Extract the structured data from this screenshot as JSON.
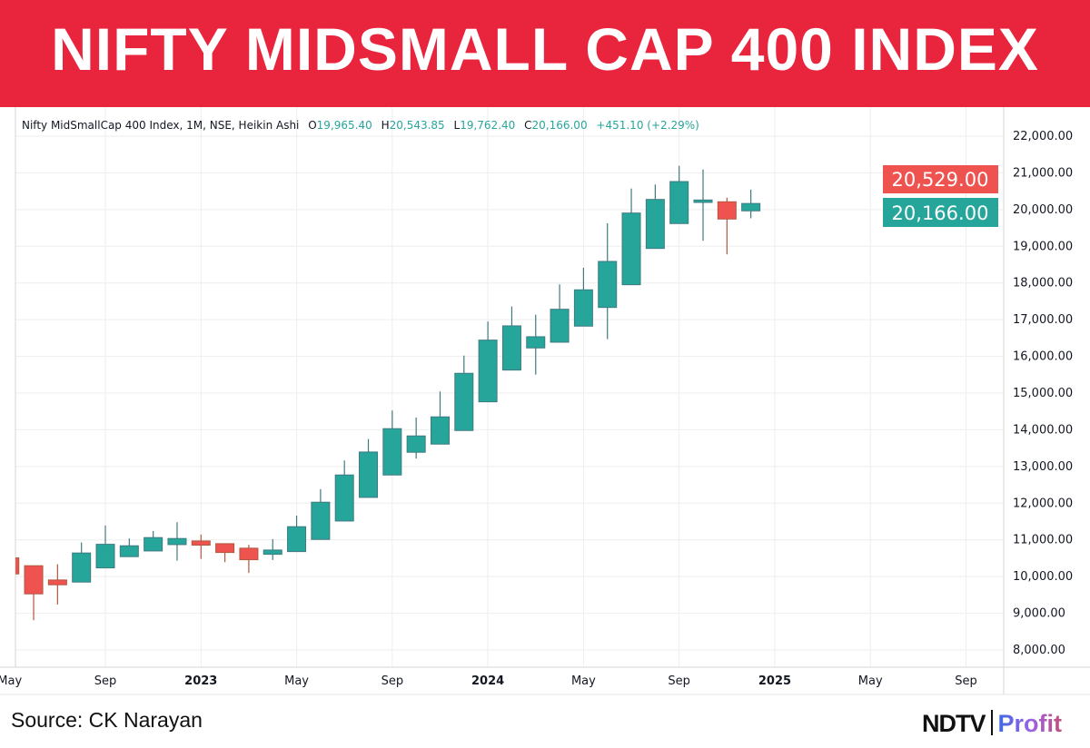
{
  "header": {
    "title": "NIFTY MIDSMALL CAP 400 INDEX"
  },
  "legend": {
    "symbol": "Nifty MidSmallCap 400 Index, 1M, NSE, Heikin Ashi",
    "o_label": "O",
    "o_value": "19,965.40",
    "h_label": "H",
    "h_value": "20,543.85",
    "l_label": "L",
    "l_value": "19,762.40",
    "c_label": "C",
    "c_value": "20,166.00",
    "change": "+451.10 (+2.29%)"
  },
  "price_labels": {
    "last": {
      "text": "20,529.00",
      "value": 20529.0,
      "color": "#ef5350"
    },
    "close": {
      "text": "20,166.00",
      "value": 20166.0,
      "color": "#26a69a"
    }
  },
  "footer": {
    "source": "Source: CK Narayan",
    "logo_left": "NDTV",
    "logo_right": "Profit"
  },
  "colors": {
    "header_bg": "#e9253e",
    "up": "#26a69a",
    "down": "#ef5350",
    "grid": "#eeeeee"
  },
  "chart_data": {
    "type": "candlestick",
    "style": "Heikin Ashi",
    "interval": "1M",
    "ylim": [
      7500,
      22500
    ],
    "y_ticks": [
      "8,000.00",
      "9,000.00",
      "10,000.00",
      "11,000.00",
      "12,000.00",
      "13,000.00",
      "14,000.00",
      "15,000.00",
      "16,000.00",
      "17,000.00",
      "18,000.00",
      "19,000.00",
      "20,000.00",
      "21,000.00",
      "22,000.00"
    ],
    "y_tick_values": [
      8000,
      9000,
      10000,
      11000,
      12000,
      13000,
      14000,
      15000,
      16000,
      17000,
      18000,
      19000,
      20000,
      21000,
      22000
    ],
    "x_ticks": [
      {
        "label": "May",
        "date": "2022-05",
        "bold": false
      },
      {
        "label": "Sep",
        "date": "2022-09",
        "bold": false
      },
      {
        "label": "2023",
        "date": "2023-01",
        "bold": true
      },
      {
        "label": "May",
        "date": "2023-05",
        "bold": false
      },
      {
        "label": "Sep",
        "date": "2023-09",
        "bold": false
      },
      {
        "label": "2024",
        "date": "2024-01",
        "bold": true
      },
      {
        "label": "May",
        "date": "2024-05",
        "bold": false
      },
      {
        "label": "Sep",
        "date": "2024-09",
        "bold": false
      },
      {
        "label": "2025",
        "date": "2025-01",
        "bold": true
      },
      {
        "label": "May",
        "date": "2025-05",
        "bold": false
      },
      {
        "label": "Sep",
        "date": "2025-09",
        "bold": false
      }
    ],
    "x_range": [
      "2022-05",
      "2025-10"
    ],
    "grid": true,
    "candles": [
      {
        "date": "2022-05",
        "o": 10508,
        "h": 10510,
        "l": 10070,
        "c": 10073
      },
      {
        "date": "2022-06",
        "o": 10295,
        "h": 10295,
        "l": 8811,
        "c": 9529
      },
      {
        "date": "2022-07",
        "o": 9907,
        "h": 10335,
        "l": 9239,
        "c": 9776
      },
      {
        "date": "2022-08",
        "o": 9850,
        "h": 10928,
        "l": 9850,
        "c": 10642
      },
      {
        "date": "2022-09",
        "o": 10236,
        "h": 11391,
        "l": 10236,
        "c": 10879
      },
      {
        "date": "2022-10",
        "o": 10543,
        "h": 11037,
        "l": 10543,
        "c": 10839
      },
      {
        "date": "2022-11",
        "o": 10698,
        "h": 11242,
        "l": 10698,
        "c": 11062
      },
      {
        "date": "2022-12",
        "o": 10871,
        "h": 11482,
        "l": 10434,
        "c": 11037
      },
      {
        "date": "2023-01",
        "o": 10970,
        "h": 11144,
        "l": 10483,
        "c": 10856
      },
      {
        "date": "2023-02",
        "o": 10896,
        "h": 10896,
        "l": 10394,
        "c": 10656
      },
      {
        "date": "2023-03",
        "o": 10773,
        "h": 10864,
        "l": 10097,
        "c": 10459
      },
      {
        "date": "2023-04",
        "o": 10607,
        "h": 11020,
        "l": 10451,
        "c": 10723
      },
      {
        "date": "2023-05",
        "o": 10681,
        "h": 11663,
        "l": 10681,
        "c": 11359
      },
      {
        "date": "2023-06",
        "o": 11012,
        "h": 12380,
        "l": 11012,
        "c": 12026
      },
      {
        "date": "2023-07",
        "o": 11514,
        "h": 13164,
        "l": 11514,
        "c": 12768
      },
      {
        "date": "2023-08",
        "o": 12157,
        "h": 13748,
        "l": 12157,
        "c": 13394
      },
      {
        "date": "2023-09",
        "o": 12768,
        "h": 14524,
        "l": 12768,
        "c": 14030
      },
      {
        "date": "2023-10",
        "o": 13387,
        "h": 14334,
        "l": 13214,
        "c": 13832
      },
      {
        "date": "2023-11",
        "o": 13609,
        "h": 15043,
        "l": 13609,
        "c": 14351
      },
      {
        "date": "2023-12",
        "o": 13980,
        "h": 16023,
        "l": 13980,
        "c": 15538
      },
      {
        "date": "2024-01",
        "o": 14762,
        "h": 16948,
        "l": 14762,
        "c": 16443
      },
      {
        "date": "2024-02",
        "o": 15627,
        "h": 17358,
        "l": 15627,
        "c": 16831
      },
      {
        "date": "2024-03",
        "o": 16230,
        "h": 17136,
        "l": 15503,
        "c": 16535
      },
      {
        "date": "2024-04",
        "o": 16386,
        "h": 17962,
        "l": 16386,
        "c": 17284
      },
      {
        "date": "2024-05",
        "o": 16824,
        "h": 18414,
        "l": 16824,
        "c": 17813
      },
      {
        "date": "2024-06",
        "o": 17333,
        "h": 19626,
        "l": 16468,
        "c": 18587
      },
      {
        "date": "2024-07",
        "o": 17952,
        "h": 20573,
        "l": 17952,
        "c": 19905
      },
      {
        "date": "2024-08",
        "o": 18941,
        "h": 20682,
        "l": 18941,
        "c": 20276
      },
      {
        "date": "2024-09",
        "o": 19619,
        "h": 21191,
        "l": 19619,
        "c": 20763
      },
      {
        "date": "2024-10",
        "o": 20195,
        "h": 21092,
        "l": 19149,
        "c": 20261
      },
      {
        "date": "2024-11",
        "o": 20212,
        "h": 20326,
        "l": 18778,
        "c": 19742
      },
      {
        "date": "2024-12",
        "o": 19965.4,
        "h": 20543.85,
        "l": 19762.4,
        "c": 20166.0
      }
    ]
  }
}
